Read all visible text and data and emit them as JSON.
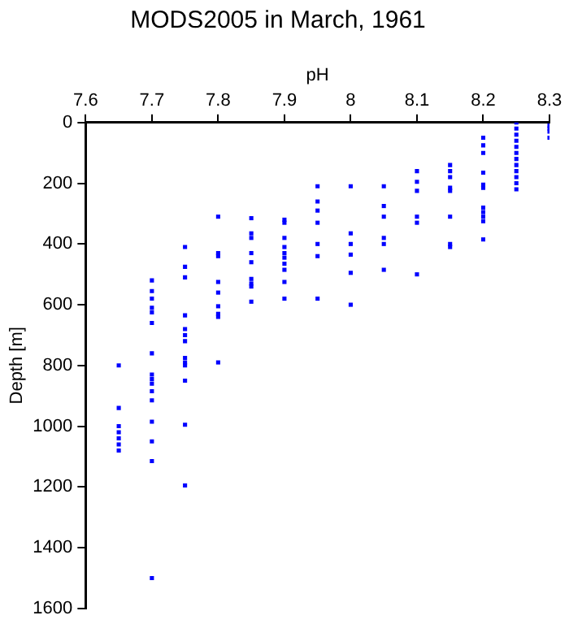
{
  "chart_data": {
    "type": "scatter",
    "title": "MODS2005 in March, 1961",
    "xlabel": "pH",
    "ylabel": "Depth [m]",
    "xlim": [
      7.6,
      8.3
    ],
    "xticks": [
      7.6,
      7.7,
      7.8,
      7.9,
      8,
      8.1,
      8.2,
      8.3
    ],
    "ylim": [
      1600,
      0
    ],
    "yticks": [
      0,
      200,
      400,
      600,
      800,
      1000,
      1200,
      1400,
      1600
    ],
    "grid": false,
    "legend": false,
    "marker": "square",
    "series": [
      {
        "color": "#0000ff",
        "x": [
          7.65,
          7.65,
          7.65,
          7.65,
          7.65,
          7.65,
          7.65,
          7.7,
          7.7,
          7.7,
          7.7,
          7.7,
          7.7,
          7.7,
          7.7,
          7.7,
          7.7,
          7.7,
          7.7,
          7.7,
          7.7,
          7.7,
          7.7,
          7.75,
          7.75,
          7.75,
          7.75,
          7.75,
          7.75,
          7.75,
          7.75,
          7.75,
          7.75,
          7.75,
          7.75,
          7.75,
          7.8,
          7.8,
          7.8,
          7.8,
          7.8,
          7.8,
          7.8,
          7.8,
          7.8,
          7.85,
          7.85,
          7.85,
          7.85,
          7.85,
          7.85,
          7.85,
          7.85,
          7.85,
          7.9,
          7.9,
          7.9,
          7.9,
          7.9,
          7.9,
          7.9,
          7.9,
          7.9,
          7.9,
          7.95,
          7.95,
          7.95,
          7.95,
          7.95,
          7.95,
          7.95,
          8,
          8,
          8,
          8,
          8,
          8,
          8.05,
          8.05,
          8.05,
          8.05,
          8.05,
          8.05,
          8.1,
          8.1,
          8.1,
          8.1,
          8.1,
          8.1,
          8.15,
          8.15,
          8.15,
          8.15,
          8.15,
          8.15,
          8.15,
          8.15,
          8.2,
          8.2,
          8.2,
          8.2,
          8.2,
          8.2,
          8.2,
          8.2,
          8.2,
          8.2,
          8.2,
          8.25,
          8.25,
          8.25,
          8.25,
          8.25,
          8.25,
          8.25,
          8.25,
          8.25,
          8.25,
          8.25,
          8.25,
          8.3,
          8.3,
          8.3,
          8.3
        ],
        "values": [
          800,
          940,
          1000,
          1020,
          1040,
          1060,
          1080,
          520,
          555,
          580,
          610,
          625,
          660,
          760,
          830,
          845,
          860,
          885,
          915,
          985,
          1050,
          1115,
          1500,
          410,
          475,
          510,
          635,
          680,
          700,
          720,
          775,
          790,
          800,
          850,
          995,
          1195,
          310,
          430,
          440,
          525,
          560,
          605,
          630,
          640,
          790,
          315,
          365,
          380,
          430,
          460,
          515,
          530,
          540,
          590,
          320,
          330,
          380,
          410,
          430,
          445,
          465,
          485,
          525,
          580,
          210,
          260,
          290,
          330,
          400,
          440,
          580,
          210,
          365,
          400,
          435,
          495,
          600,
          210,
          275,
          310,
          380,
          400,
          485,
          160,
          195,
          225,
          310,
          330,
          500,
          140,
          160,
          180,
          215,
          225,
          310,
          400,
          410,
          50,
          75,
          100,
          165,
          205,
          215,
          280,
          295,
          310,
          325,
          385,
          0,
          20,
          40,
          60,
          80,
          100,
          120,
          140,
          160,
          180,
          200,
          220,
          10,
          20,
          30,
          50
        ]
      }
    ]
  }
}
